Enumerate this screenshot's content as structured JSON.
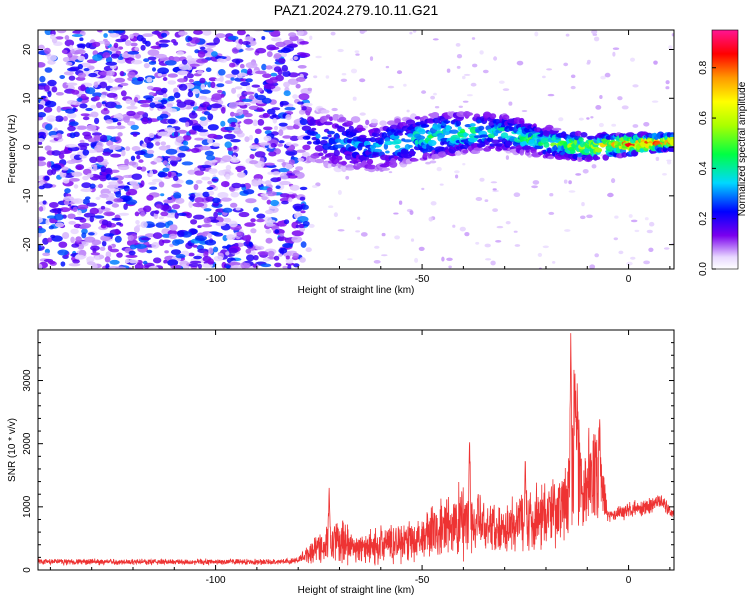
{
  "figure_title": "PAZ1.2024.279.10.11.G21",
  "chart_data": [
    {
      "type": "heatmap",
      "name": "spectrogram",
      "xlabel": "Height of straight line (km)",
      "ylabel": "Frequency (Hz)",
      "xlim": [
        -143,
        11
      ],
      "ylim": [
        -25,
        24
      ],
      "xticks": [
        -100,
        -50,
        0
      ],
      "yticks": [
        -20,
        -10,
        0,
        10,
        20
      ],
      "colorbar": {
        "label": "Normalized spectral amplitude",
        "range": [
          0,
          0.95
        ],
        "ticks": [
          0.0,
          0.2,
          0.4,
          0.6,
          0.8
        ]
      },
      "noise_region": {
        "x_range": [
          -143,
          -78
        ],
        "frequency_range": [
          -25,
          24
        ],
        "amplitude_range": [
          0.05,
          0.3
        ]
      },
      "signal_trace": {
        "heights": [
          -78,
          -70,
          -60,
          -50,
          -40,
          -30,
          -20,
          -10,
          0,
          10
        ],
        "frequencies": [
          3,
          1,
          0,
          2,
          3,
          3,
          1,
          0,
          0.5,
          1
        ],
        "amplitudes": [
          0.3,
          0.3,
          0.35,
          0.45,
          0.5,
          0.45,
          0.5,
          0.7,
          0.9,
          0.85
        ]
      }
    },
    {
      "type": "line",
      "name": "snr",
      "xlabel": "Height of straight line (km)",
      "ylabel": "SNR (10 * v/v)",
      "xlim": [
        -143,
        11
      ],
      "ylim": [
        0,
        3800
      ],
      "xticks": [
        -100,
        -50,
        0
      ],
      "yticks": [
        0,
        1000,
        2000,
        3000
      ],
      "color": "#ee3333",
      "grid": false,
      "envelope": {
        "heights": [
          -143,
          -120,
          -100,
          -85,
          -80,
          -75,
          -70,
          -65,
          -60,
          -55,
          -50,
          -45,
          -40,
          -35,
          -30,
          -25,
          -20,
          -17,
          -15,
          -13,
          -11,
          -9,
          -7,
          -5,
          0,
          5,
          8,
          11
        ],
        "mean_snr": [
          130,
          130,
          130,
          130,
          150,
          380,
          450,
          330,
          400,
          450,
          520,
          640,
          800,
          700,
          680,
          800,
          900,
          950,
          1100,
          1900,
          1300,
          1500,
          1500,
          850,
          950,
          1000,
          1100,
          850
        ],
        "variation": [
          60,
          55,
          55,
          50,
          60,
          320,
          420,
          250,
          380,
          380,
          450,
          600,
          750,
          520,
          450,
          650,
          600,
          650,
          700,
          1500,
          900,
          900,
          800,
          150,
          150,
          150,
          150,
          80
        ]
      },
      "peaks": [
        {
          "x": -72.5,
          "y": 1300
        },
        {
          "x": -38.5,
          "y": 2130
        },
        {
          "x": -25,
          "y": 1800
        },
        {
          "x": -14,
          "y": 3750
        },
        {
          "x": -13,
          "y": 3150
        },
        {
          "x": -7,
          "y": 2450
        }
      ]
    }
  ]
}
